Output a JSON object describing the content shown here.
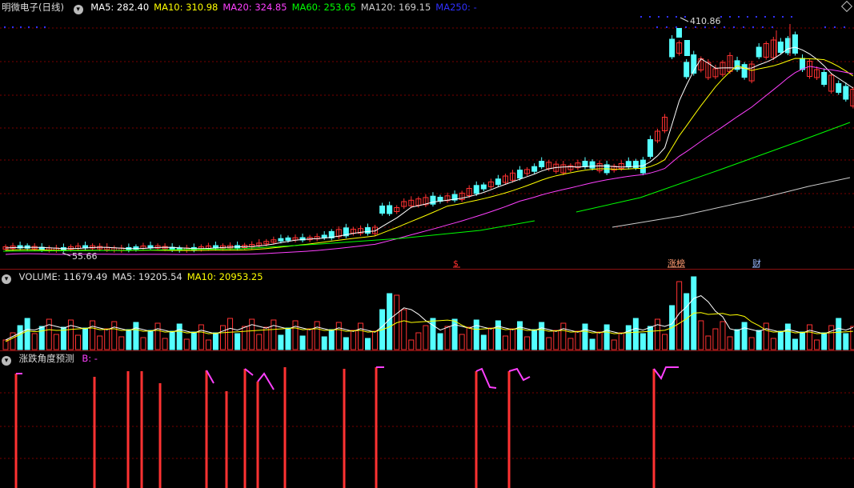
{
  "main": {
    "title": "明微电子(日线)",
    "ma_labels": [
      {
        "text": "MA5: 282.40",
        "color": "#ffffff"
      },
      {
        "text": "MA10: 310.98",
        "color": "#ffff00"
      },
      {
        "text": "MA20: 324.85",
        "color": "#ff40ff"
      },
      {
        "text": "MA60: 253.65",
        "color": "#00ff00"
      },
      {
        "text": "MA120: 169.15",
        "color": "#cccccc"
      },
      {
        "text": "MA250: -",
        "color": "#3030ff"
      }
    ],
    "high_label": "410.86",
    "low_label": "55.66",
    "markers": [
      {
        "text": "$",
        "color": "#ff3030"
      },
      {
        "text": "涨榜",
        "color": "#ff9a70"
      },
      {
        "text": "财",
        "color": "#9ab8ff"
      }
    ]
  },
  "volume": {
    "labels": [
      {
        "text": "VOLUME: 11679.49",
        "color": "#dddddd"
      },
      {
        "text": "MA5: 19205.54",
        "color": "#dddddd"
      },
      {
        "text": "MA10: 20953.25",
        "color": "#ffff00"
      }
    ]
  },
  "indicator": {
    "title": "涨跌角度预测",
    "value_label": "B: -",
    "value_color": "#ff40ff"
  },
  "colors": {
    "up": "#ff3232",
    "down": "#54ffff",
    "grid": "#7a0000",
    "ma5": "#ffffff",
    "ma10": "#ffff00",
    "ma20": "#ff40ff",
    "ma60": "#00ff00",
    "ma120": "#cccccc",
    "ma250": "#3030ff"
  },
  "icons": {
    "toggle": "chevron-down-icon",
    "window": "diamond-icon"
  }
}
